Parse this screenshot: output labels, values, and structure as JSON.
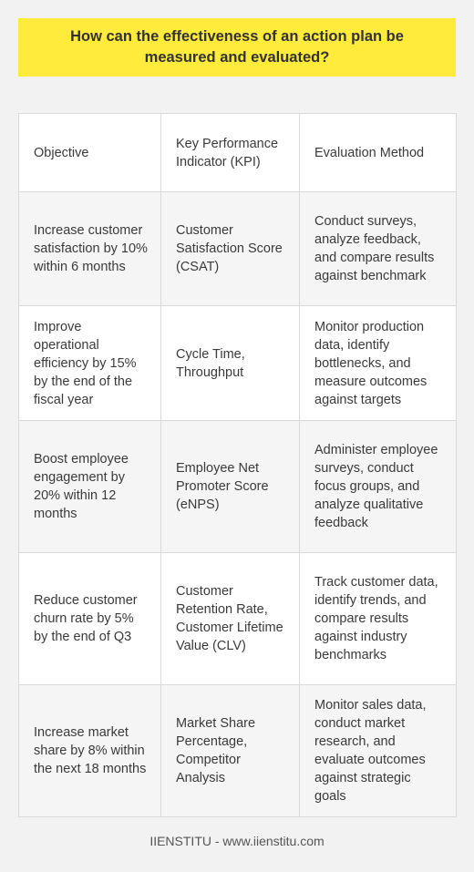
{
  "title": "How can the effectiveness of an action plan be measured and evaluated?",
  "table": {
    "headers": [
      "Objective",
      "Key Performance Indicator (KPI)",
      "Evaluation Method"
    ],
    "rows": [
      [
        "Increase customer satisfaction by 10% within 6 months",
        "Customer Satisfaction Score (CSAT)",
        "Conduct surveys, analyze feedback, and compare results against benchmark"
      ],
      [
        "Improve operational efficiency by 15% by the end of the fiscal year",
        "Cycle Time, Throughput",
        "Monitor production data, identify bottlenecks, and measure outcomes against targets"
      ],
      [
        "Boost employee engagement by 20% within 12 months",
        "Employee Net Promoter Score (eNPS)",
        "Administer employee surveys, conduct focus groups, and analyze qualitative feedback"
      ],
      [
        "Reduce customer churn rate by 5% by the end of Q3",
        "Customer Retention Rate, Customer Lifetime Value (CLV)",
        "Track customer data, identify trends, and compare results against industry benchmarks"
      ],
      [
        "Increase market share by 8% within the next 18 months",
        "Market Share Percentage, Competitor Analysis",
        "Monitor sales data, conduct market research, and evaluate outcomes against strategic goals"
      ]
    ]
  },
  "footer": "IIENSTITU - www.iienstitu.com"
}
